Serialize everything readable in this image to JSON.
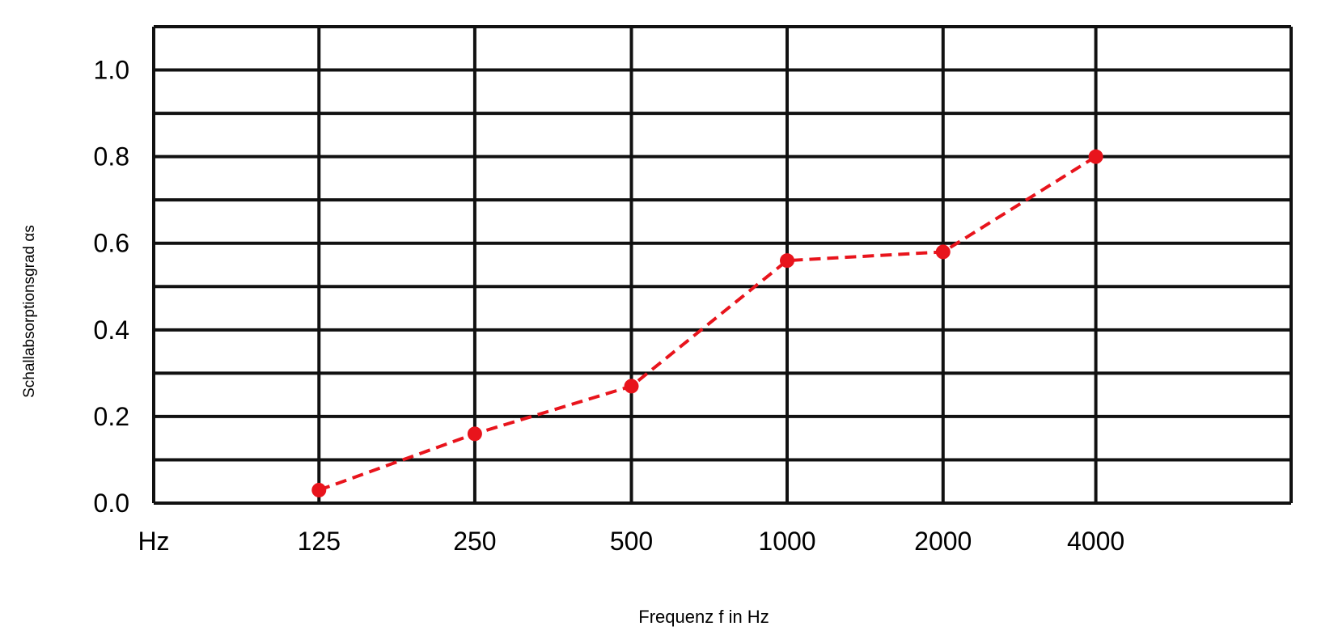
{
  "chart_data": {
    "type": "line",
    "xlabel": "Frequenz f in Hz",
    "ylabel": "Schallabsorptionsgrad αs",
    "x_unit_label": "Hz",
    "categories": [
      "125",
      "250",
      "500",
      "1000",
      "2000",
      "4000"
    ],
    "series": [
      {
        "values": [
          0.03,
          0.16,
          0.27,
          0.56,
          0.58,
          0.8
        ],
        "color": "#e8141c",
        "line_style": "dashed",
        "marker": "circle"
      }
    ],
    "y_ticks": [
      "0.0",
      "0.2",
      "0.4",
      "0.6",
      "0.8",
      "1.0"
    ],
    "ylim": [
      0,
      1.1
    ],
    "grid": true,
    "grid_color": "#111111",
    "legend": "none"
  }
}
